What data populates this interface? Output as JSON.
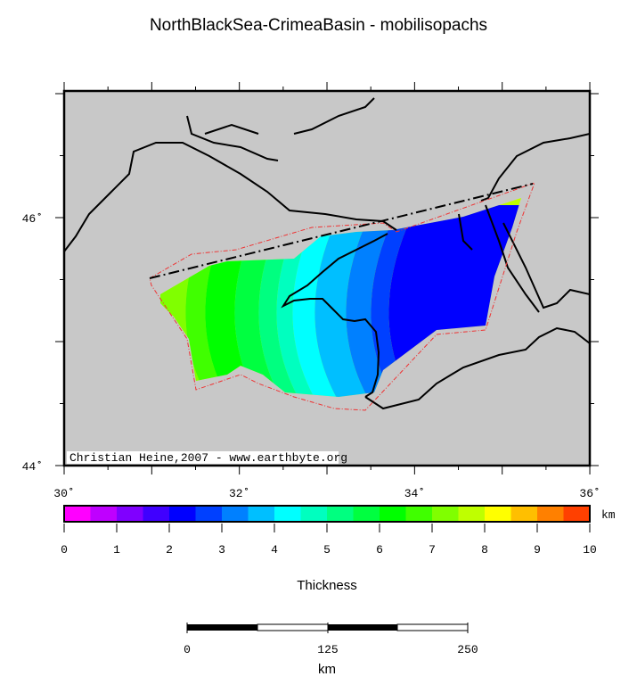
{
  "title": "NorthBlackSea-CrimeaBasin - mobilisopachs",
  "map": {
    "lon_range": [
      30,
      36
    ],
    "lat_range": [
      44,
      47
    ],
    "lon_tick_labels": [
      "30˚",
      "32˚",
      "34˚",
      "36˚"
    ],
    "lat_tick_labels": [
      "44˚",
      "46˚"
    ],
    "land_color": "#c8c8c8",
    "credit": "Christian Heine,2007 - www.earthbyte.org"
  },
  "colorbar": {
    "label": "Thickness",
    "unit": "km",
    "range": [
      0,
      10
    ],
    "step": 0.5,
    "tick_labels": [
      "0",
      "1",
      "2",
      "3",
      "4",
      "5",
      "6",
      "7",
      "8",
      "9",
      "10"
    ],
    "colors": [
      "#ff00ff",
      "#bf00ff",
      "#8000ff",
      "#4000ff",
      "#0000ff",
      "#0040ff",
      "#0080ff",
      "#00bfff",
      "#00ffff",
      "#00ffbf",
      "#00ff80",
      "#00ff40",
      "#00ff00",
      "#40ff00",
      "#80ff00",
      "#bfff00",
      "#ffff00",
      "#ffbf00",
      "#ff8000",
      "#ff4000"
    ]
  },
  "scalebar": {
    "tick_labels": [
      "0",
      "125",
      "250"
    ],
    "unit": "km"
  }
}
